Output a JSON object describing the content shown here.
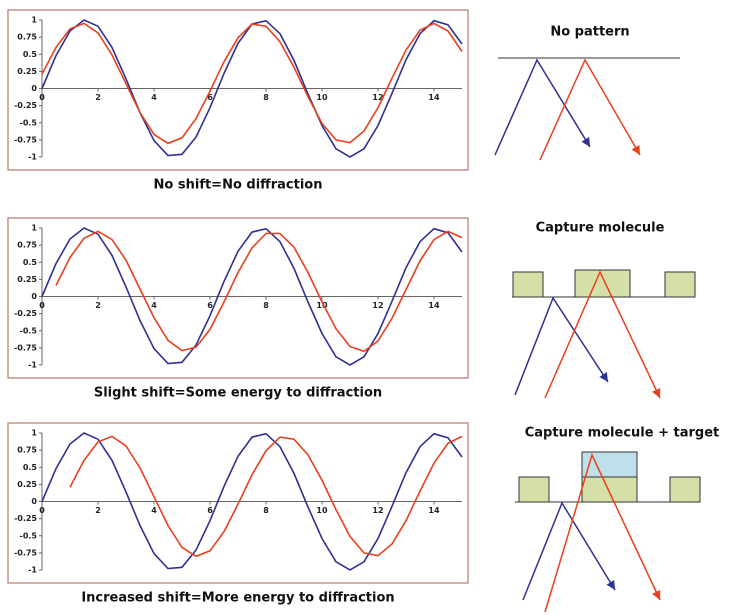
{
  "chart_data": [
    {
      "type": "line",
      "caption": "No shift=No diffraction",
      "x": [
        0,
        0.5,
        1,
        1.5,
        2,
        2.5,
        3,
        3.5,
        4,
        4.5,
        5,
        5.5,
        6,
        6.5,
        7,
        7.5,
        8,
        8.5,
        9,
        9.5,
        10,
        10.5,
        11,
        11.5,
        12,
        12.5,
        13,
        13.5,
        14,
        14.5,
        15
      ],
      "series": [
        {
          "color": "#2e3192",
          "values": [
            0,
            0.48,
            0.84,
            1.0,
            0.91,
            0.6,
            0.14,
            -0.35,
            -0.76,
            -0.98,
            -0.96,
            -0.71,
            -0.28,
            0.22,
            0.66,
            0.94,
            0.99,
            0.8,
            0.41,
            -0.08,
            -0.54,
            -0.88,
            -1.0,
            -0.88,
            -0.54,
            -0.07,
            0.42,
            0.8,
            0.99,
            0.93,
            0.65
          ]
        },
        {
          "color": "#e8401c",
          "values": [
            0.21,
            0.6,
            0.87,
            0.95,
            0.81,
            0.49,
            0.07,
            -0.35,
            -0.67,
            -0.8,
            -0.72,
            -0.44,
            -0.04,
            0.39,
            0.74,
            0.94,
            0.91,
            0.68,
            0.31,
            -0.12,
            -0.51,
            -0.75,
            -0.79,
            -0.62,
            -0.28,
            0.15,
            0.56,
            0.85,
            0.95,
            0.84,
            0.54
          ]
        }
      ],
      "xlim": [
        0,
        15
      ],
      "xticks": [
        0,
        2,
        4,
        6,
        8,
        10,
        12,
        14
      ],
      "ylim": [
        -1,
        1
      ],
      "yticks": [
        1,
        0.75,
        0.5,
        0.25,
        0,
        -0.25,
        -0.5,
        -0.75,
        -1
      ]
    },
    {
      "type": "line",
      "caption": "Slight shift=Some energy to diffraction",
      "x": [
        0,
        0.5,
        1,
        1.5,
        2,
        2.5,
        3,
        3.5,
        4,
        4.5,
        5,
        5.5,
        6,
        6.5,
        7,
        7.5,
        8,
        8.5,
        9,
        9.5,
        10,
        10.5,
        11,
        11.5,
        12,
        12.5,
        13,
        13.5,
        14,
        14.5,
        15
      ],
      "series": [
        {
          "color": "#2e3192",
          "values": [
            0,
            0.48,
            0.84,
            1.0,
            0.91,
            0.6,
            0.14,
            -0.35,
            -0.76,
            -0.98,
            -0.96,
            -0.71,
            -0.28,
            0.22,
            0.66,
            0.94,
            0.99,
            0.8,
            0.41,
            -0.08,
            -0.54,
            -0.88,
            -1.0,
            -0.88,
            -0.54,
            -0.07,
            0.42,
            0.8,
            0.99,
            0.93,
            0.65
          ]
        },
        {
          "color": "#e8401c",
          "values": [
            null,
            0.16,
            0.57,
            0.85,
            0.95,
            0.83,
            0.53,
            0.11,
            -0.31,
            -0.64,
            -0.79,
            -0.74,
            -0.48,
            -0.08,
            0.35,
            0.71,
            0.92,
            0.92,
            0.72,
            0.35,
            -0.08,
            -0.47,
            -0.73,
            -0.8,
            -0.65,
            -0.32,
            0.1,
            0.52,
            0.83,
            0.95,
            0.86
          ]
        }
      ],
      "xlim": [
        0,
        15
      ],
      "xticks": [
        0,
        2,
        4,
        6,
        8,
        10,
        12,
        14
      ],
      "ylim": [
        -1,
        1
      ],
      "yticks": [
        1,
        0.75,
        0.5,
        0.25,
        0,
        -0.25,
        -0.5,
        -0.75,
        -1
      ]
    },
    {
      "type": "line",
      "caption": "Increased shift=More energy to diffraction",
      "x": [
        0,
        0.5,
        1,
        1.5,
        2,
        2.5,
        3,
        3.5,
        4,
        4.5,
        5,
        5.5,
        6,
        6.5,
        7,
        7.5,
        8,
        8.5,
        9,
        9.5,
        10,
        10.5,
        11,
        11.5,
        12,
        12.5,
        13,
        13.5,
        14,
        14.5,
        15
      ],
      "series": [
        {
          "color": "#2e3192",
          "values": [
            0,
            0.48,
            0.84,
            1.0,
            0.91,
            0.6,
            0.14,
            -0.35,
            -0.76,
            -0.98,
            -0.96,
            -0.71,
            -0.28,
            0.22,
            0.66,
            0.94,
            0.99,
            0.8,
            0.41,
            -0.08,
            -0.54,
            -0.88,
            -1.0,
            -0.88,
            -0.54,
            -0.07,
            0.42,
            0.8,
            0.99,
            0.93,
            0.65
          ]
        },
        {
          "color": "#e8401c",
          "values": [
            null,
            null,
            0.21,
            0.6,
            0.87,
            0.95,
            0.81,
            0.49,
            0.07,
            -0.35,
            -0.67,
            -0.8,
            -0.72,
            -0.44,
            -0.04,
            0.39,
            0.74,
            0.94,
            0.91,
            0.68,
            0.31,
            -0.12,
            -0.51,
            -0.75,
            -0.79,
            -0.62,
            -0.28,
            0.15,
            0.56,
            0.85,
            0.95
          ]
        }
      ],
      "xlim": [
        0,
        15
      ],
      "xticks": [
        0,
        2,
        4,
        6,
        8,
        10,
        12,
        14
      ],
      "ylim": [
        -1,
        1
      ],
      "yticks": [
        1,
        0.75,
        0.5,
        0.25,
        0,
        -0.25,
        -0.5,
        -0.75,
        -1
      ]
    }
  ],
  "panels": [
    {
      "title": "No pattern"
    },
    {
      "title": "Capture molecule"
    },
    {
      "title": "Capture molecule + target"
    }
  ]
}
